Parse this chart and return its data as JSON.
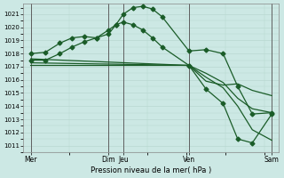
{
  "bg_color": "#cce8e4",
  "grid_color": "#b8d8d0",
  "line_color": "#1a5c28",
  "xlabel": "Pression niveau de la mer( hPa )",
  "ylim": [
    1010.5,
    1021.8
  ],
  "yticks": [
    1011,
    1012,
    1013,
    1014,
    1015,
    1016,
    1017,
    1018,
    1019,
    1020,
    1021
  ],
  "xlim": [
    0,
    10.5
  ],
  "xtick_positions": [
    0.3,
    3.5,
    4.1,
    6.8,
    10.2
  ],
  "xtick_labels": [
    "Mer",
    "Dim",
    "Jeu",
    "Ven",
    "Sam"
  ],
  "vline_positions": [
    0.3,
    3.5,
    4.1,
    6.8,
    10.2
  ],
  "line1_x": [
    0.3,
    0.9,
    1.5,
    2.0,
    2.5,
    3.0,
    3.5,
    3.8,
    4.1,
    4.5,
    4.9,
    5.3,
    5.7,
    6.8,
    7.5,
    8.2,
    8.8,
    9.4,
    10.2
  ],
  "line1_y": [
    1018.0,
    1018.1,
    1018.8,
    1019.2,
    1019.3,
    1019.2,
    1019.5,
    1020.2,
    1021.0,
    1021.5,
    1021.6,
    1021.4,
    1020.8,
    1018.2,
    1018.3,
    1018.0,
    1015.5,
    1013.4,
    1013.5
  ],
  "line2_x": [
    0.3,
    0.9,
    1.5,
    2.0,
    2.5,
    3.0,
    3.5,
    3.8,
    4.1,
    4.5,
    4.9,
    5.3,
    5.7,
    6.8
  ],
  "line2_y": [
    1017.5,
    1017.5,
    1018.0,
    1018.5,
    1018.9,
    1019.2,
    1019.8,
    1020.2,
    1020.4,
    1020.2,
    1019.8,
    1019.2,
    1018.5,
    1017.1
  ],
  "line3_x": [
    0.3,
    6.8,
    7.5,
    8.2,
    8.8,
    9.4,
    10.2
  ],
  "line3_y": [
    1017.6,
    1017.1,
    1016.5,
    1015.8,
    1014.6,
    1013.8,
    1013.5
  ],
  "line4_x": [
    0.3,
    6.8,
    7.5,
    8.2,
    8.8,
    9.4,
    10.2
  ],
  "line4_y": [
    1017.3,
    1017.1,
    1015.9,
    1015.6,
    1015.7,
    1015.2,
    1014.8
  ],
  "line5_x": [
    0.3,
    6.8,
    7.5,
    8.2,
    8.8,
    9.4,
    10.2
  ],
  "line5_y": [
    1017.1,
    1017.1,
    1016.2,
    1015.4,
    1014.0,
    1012.2,
    1011.4
  ],
  "line6_x": [
    6.8,
    7.5,
    8.2,
    8.8,
    9.4,
    10.2
  ],
  "line6_y": [
    1017.1,
    1015.3,
    1014.2,
    1011.5,
    1011.2,
    1013.4
  ]
}
